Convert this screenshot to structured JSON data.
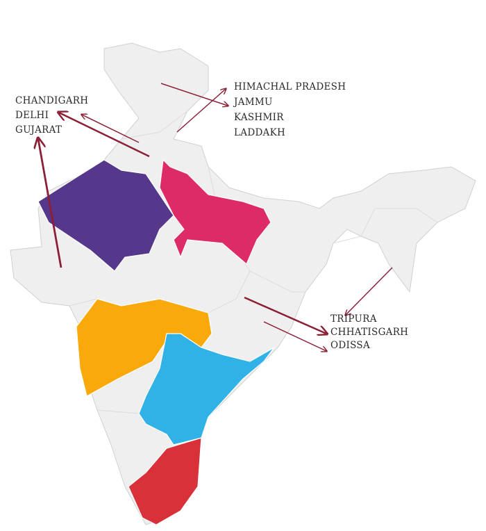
{
  "label_groups": [
    {
      "items": [
        "CHANDIGARH",
        "DELHI",
        "GUJARAT"
      ]
    },
    {
      "items": [
        "HIMACHAL PRADESH",
        "JAMMU",
        "KASHMIR",
        "LADDAKH"
      ]
    },
    {
      "items": [
        "TRIPURA",
        "CHHATISGARH",
        "ODISSA"
      ]
    }
  ]
}
